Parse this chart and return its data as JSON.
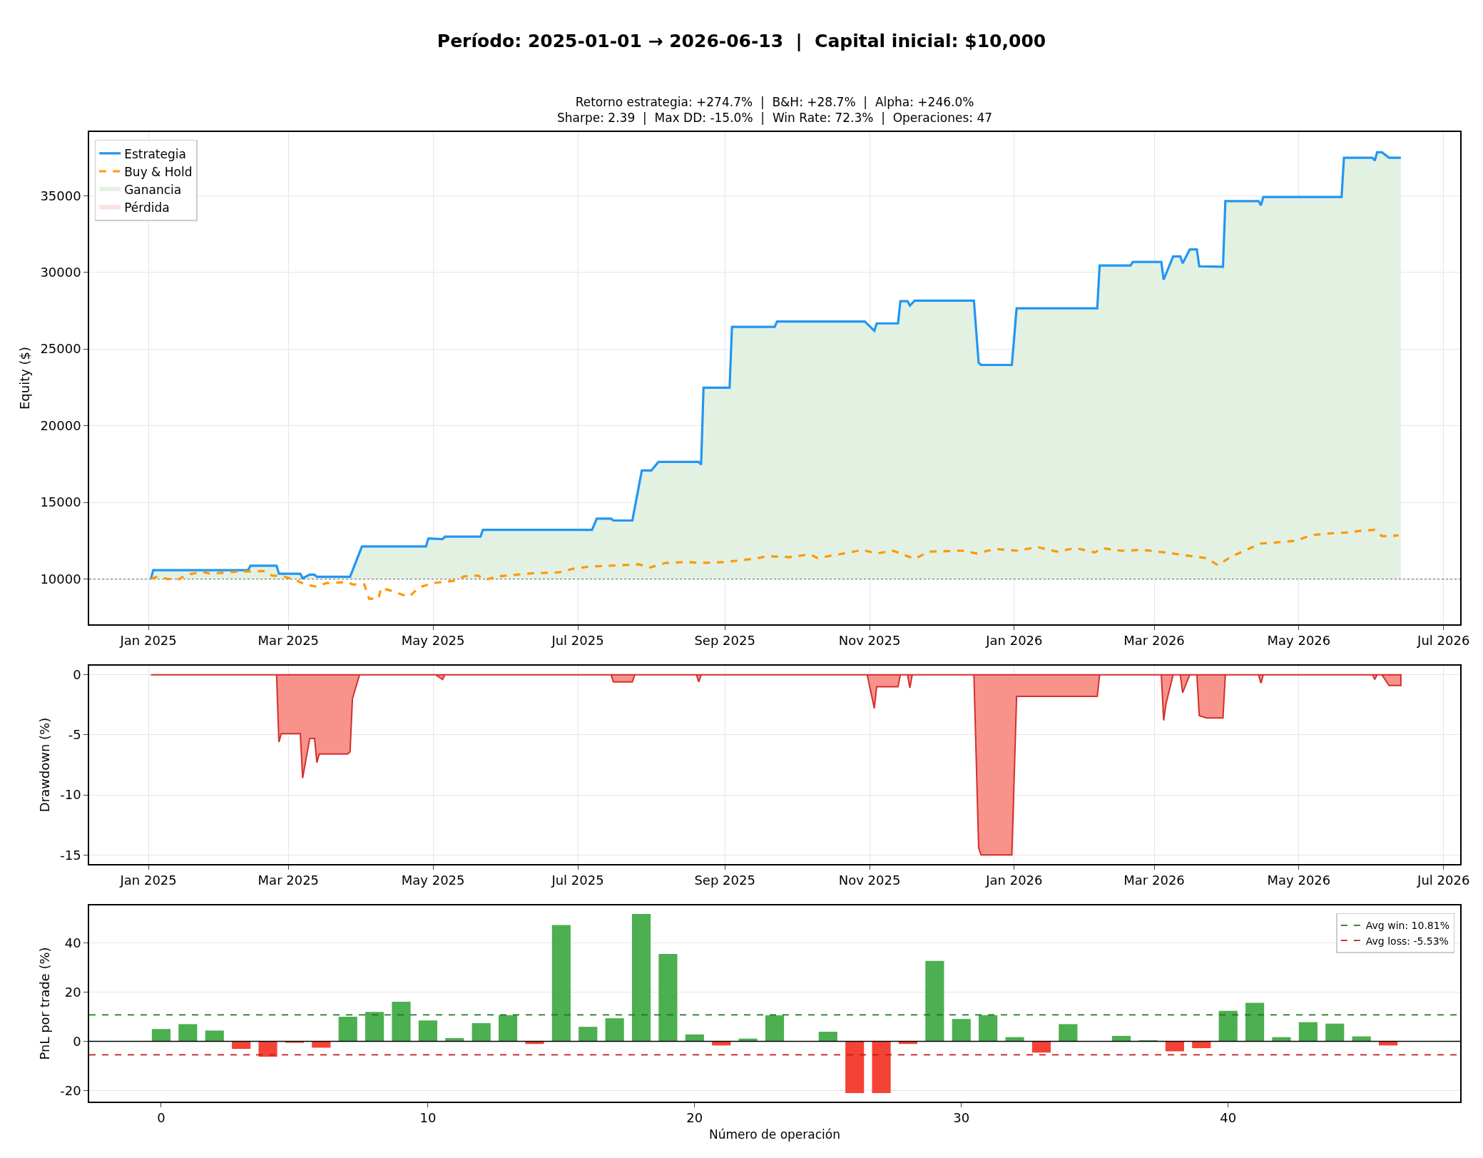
{
  "chart_data": [
    {
      "type": "line",
      "title": "Período: 2025-01-01 → 2026-06-13  |  Capital inicial: $10,000",
      "subtitle": "Retorno estrategia: +274.7%  |  B&H: +28.7%  |  Alpha: +246.0%\nSharpe: 2.39  |  Max DD: -15.0%  |  Win Rate: 72.3%  |  Operaciones: 47",
      "ylabel": "Equity ($)",
      "xlim": [
        "2024-12-07",
        "2026-07-08"
      ],
      "xticks": [
        {
          "value": "2025-01-01",
          "label": "Jan 2025"
        },
        {
          "value": "2025-03-01",
          "label": "Mar 2025"
        },
        {
          "value": "2025-05-01",
          "label": "May 2025"
        },
        {
          "value": "2025-07-01",
          "label": "Jul 2025"
        },
        {
          "value": "2025-09-01",
          "label": "Sep 2025"
        },
        {
          "value": "2025-11-01",
          "label": "Nov 2025"
        },
        {
          "value": "2026-01-01",
          "label": "Jan 2026"
        },
        {
          "value": "2026-03-01",
          "label": "Mar 2026"
        },
        {
          "value": "2026-05-01",
          "label": "May 2026"
        },
        {
          "value": "2026-07-01",
          "label": "Jul 2026"
        }
      ],
      "ylim": [
        7050,
        39150
      ],
      "yticks": [
        10000,
        15000,
        20000,
        25000,
        30000,
        35000
      ],
      "grid": true,
      "legend": "top left",
      "ref_lines": [
        {
          "axis": "y",
          "value": 10000,
          "color": "#808080",
          "line_style": "dotted"
        }
      ],
      "series": [
        {
          "name": "Estrategia",
          "type": "line",
          "color": "#2196f3",
          "line_style": "solid",
          "x": [
            "2025-01-02",
            "2025-01-03",
            "2025-02-12",
            "2025-02-13",
            "2025-02-24",
            "2025-02-25",
            "2025-03-06",
            "2025-03-07",
            "2025-03-10",
            "2025-03-12",
            "2025-03-13",
            "2025-03-27",
            "2025-04-01",
            "2025-04-28",
            "2025-04-29",
            "2025-05-05",
            "2025-05-06",
            "2025-05-21",
            "2025-05-22",
            "2025-07-07",
            "2025-07-09",
            "2025-07-15",
            "2025-07-16",
            "2025-07-24",
            "2025-07-28",
            "2025-08-01",
            "2025-08-04",
            "2025-08-21",
            "2025-08-22",
            "2025-08-23",
            "2025-09-03",
            "2025-09-04",
            "2025-09-22",
            "2025-09-23",
            "2025-10-30",
            "2025-11-03",
            "2025-11-04",
            "2025-11-13",
            "2025-11-14",
            "2025-11-17",
            "2025-11-18",
            "2025-11-20",
            "2025-12-15",
            "2025-12-17",
            "2025-12-18",
            "2025-12-31",
            "2026-01-02",
            "2026-02-05",
            "2026-02-06",
            "2026-02-19",
            "2026-02-20",
            "2026-03-04",
            "2026-03-05",
            "2026-03-09",
            "2026-03-12",
            "2026-03-13",
            "2026-03-16",
            "2026-03-19",
            "2026-03-20",
            "2026-03-30",
            "2026-03-31",
            "2026-04-14",
            "2026-04-15",
            "2026-04-16",
            "2026-05-19",
            "2026-05-20",
            "2026-06-01",
            "2026-06-02",
            "2026-06-03",
            "2026-06-05",
            "2026-06-08",
            "2026-06-13"
          ],
          "values": [
            10000,
            10580,
            10580,
            10870,
            10870,
            10350,
            10350,
            10050,
            10290,
            10290,
            10150,
            10150,
            12130,
            12130,
            12650,
            12600,
            12770,
            12770,
            13210,
            13210,
            13940,
            13940,
            13820,
            13820,
            17080,
            17080,
            17640,
            17640,
            17460,
            22480,
            22480,
            26440,
            26440,
            26790,
            26790,
            26190,
            26670,
            26670,
            28120,
            28120,
            27830,
            28150,
            28150,
            24110,
            23960,
            23960,
            27650,
            27650,
            30440,
            30440,
            30680,
            30680,
            29520,
            31040,
            31040,
            30590,
            31490,
            31490,
            30390,
            30360,
            34640,
            34640,
            34370,
            34910,
            34910,
            37470,
            37470,
            37290,
            37830,
            37830,
            37470,
            37470
          ]
        },
        {
          "name": "Buy & Hold",
          "type": "line",
          "color": "#ff9800",
          "line_style": "dashed",
          "x": [
            "2025-01-02",
            "2025-01-05",
            "2025-01-09",
            "2025-01-14",
            "2025-01-17",
            "2025-01-24",
            "2025-01-27",
            "2025-02-06",
            "2025-02-19",
            "2025-02-22",
            "2025-02-27",
            "2025-03-04",
            "2025-03-08",
            "2025-03-13",
            "2025-03-17",
            "2025-03-26",
            "2025-03-28",
            "2025-04-02",
            "2025-04-04",
            "2025-04-08",
            "2025-04-09",
            "2025-04-14",
            "2025-04-18",
            "2025-04-21",
            "2025-04-25",
            "2025-05-01",
            "2025-05-11",
            "2025-05-14",
            "2025-05-20",
            "2025-05-23",
            "2025-05-28",
            "2025-06-12",
            "2025-06-23",
            "2025-06-29",
            "2025-07-06",
            "2025-07-19",
            "2025-07-27",
            "2025-07-31",
            "2025-08-07",
            "2025-08-16",
            "2025-08-22",
            "2025-09-01",
            "2025-09-14",
            "2025-09-19",
            "2025-09-28",
            "2025-10-07",
            "2025-10-10",
            "2025-10-19",
            "2025-10-29",
            "2025-11-04",
            "2025-11-11",
            "2025-11-20",
            "2025-11-26",
            "2025-12-10",
            "2025-12-16",
            "2025-12-24",
            "2026-01-02",
            "2026-01-11",
            "2026-01-19",
            "2026-01-27",
            "2026-02-04",
            "2026-02-07",
            "2026-02-15",
            "2026-02-24",
            "2026-03-06",
            "2026-03-14",
            "2026-03-23",
            "2026-03-28",
            "2026-04-02",
            "2026-04-08",
            "2026-04-15",
            "2026-04-21",
            "2026-04-30",
            "2026-05-06",
            "2026-05-14",
            "2026-05-22",
            "2026-05-27",
            "2026-06-02",
            "2026-06-05",
            "2026-06-09",
            "2026-06-12"
          ],
          "values": [
            10000,
            10170,
            10000,
            10000,
            10290,
            10470,
            10350,
            10470,
            10520,
            10230,
            10170,
            9940,
            9650,
            9500,
            9740,
            9800,
            9650,
            9650,
            8720,
            8720,
            9420,
            9210,
            8980,
            8860,
            9450,
            9740,
            9910,
            10170,
            10230,
            9940,
            10170,
            10380,
            10440,
            10670,
            10820,
            10900,
            10960,
            10730,
            11050,
            11110,
            11050,
            11110,
            11340,
            11490,
            11430,
            11610,
            11370,
            11610,
            11900,
            11670,
            11850,
            11310,
            11790,
            11850,
            11670,
            11960,
            11850,
            12080,
            11790,
            12020,
            11730,
            12020,
            11850,
            11900,
            11730,
            11550,
            11370,
            10890,
            11430,
            11850,
            12320,
            12380,
            12500,
            12860,
            12980,
            13040,
            13150,
            13210,
            12800,
            12800,
            12860
          ]
        },
        {
          "name": "Ganancia",
          "type": "area",
          "color": "#e3f1e3"
        },
        {
          "name": "Pérdida",
          "type": "area",
          "color": "#fde0de"
        }
      ]
    },
    {
      "type": "area",
      "ylabel": "Drawdown (%)",
      "xlim": [
        "2024-12-07",
        "2026-07-08"
      ],
      "xticks": [
        {
          "value": "2025-01-01",
          "label": "Jan 2025"
        },
        {
          "value": "2025-03-01",
          "label": "Mar 2025"
        },
        {
          "value": "2025-05-01",
          "label": "May 2025"
        },
        {
          "value": "2025-07-01",
          "label": "Jul 2025"
        },
        {
          "value": "2025-09-01",
          "label": "Sep 2025"
        },
        {
          "value": "2025-11-01",
          "label": "Nov 2025"
        },
        {
          "value": "2026-01-01",
          "label": "Jan 2026"
        },
        {
          "value": "2026-03-01",
          "label": "Mar 2026"
        },
        {
          "value": "2026-05-01",
          "label": "May 2026"
        },
        {
          "value": "2026-07-01",
          "label": "Jul 2026"
        }
      ],
      "ylim": [
        -15.75,
        0.75
      ],
      "yticks": [
        -15,
        -10,
        -5,
        0
      ],
      "grid": true,
      "series": [
        {
          "color": "#f7938b",
          "x": [
            "2025-01-02",
            "2025-02-24",
            "2025-02-25",
            "2025-02-26",
            "2025-03-06",
            "2025-03-07",
            "2025-03-10",
            "2025-03-12",
            "2025-03-13",
            "2025-03-14",
            "2025-03-26",
            "2025-03-27",
            "2025-03-28",
            "2025-03-31",
            "2025-05-02",
            "2025-05-05",
            "2025-05-06",
            "2025-07-15",
            "2025-07-16",
            "2025-07-24",
            "2025-07-25",
            "2025-08-20",
            "2025-08-21",
            "2025-08-22",
            "2025-10-31",
            "2025-11-03",
            "2025-11-04",
            "2025-11-13",
            "2025-11-14",
            "2025-11-17",
            "2025-11-18",
            "2025-11-19",
            "2025-12-15",
            "2025-12-17",
            "2025-12-18",
            "2025-12-31",
            "2026-01-02",
            "2026-02-05",
            "2026-02-06",
            "2026-03-04",
            "2026-03-05",
            "2026-03-06",
            "2026-03-09",
            "2026-03-12",
            "2026-03-13",
            "2026-03-16",
            "2026-03-19",
            "2026-03-20",
            "2026-03-23",
            "2026-03-30",
            "2026-03-31",
            "2026-04-14",
            "2026-04-15",
            "2026-04-16",
            "2026-06-01",
            "2026-06-02",
            "2026-06-03",
            "2026-06-05",
            "2026-06-08",
            "2026-06-13"
          ],
          "values": [
            0,
            0,
            -5.6,
            -4.9,
            -4.9,
            -8.6,
            -5.3,
            -5.3,
            -7.3,
            -6.6,
            -6.6,
            -6.4,
            -2.0,
            0,
            0,
            -0.4,
            0,
            0,
            -0.6,
            -0.6,
            0,
            0,
            -0.6,
            0,
            0,
            -2.8,
            -1.0,
            -1.0,
            0,
            0,
            -1.1,
            0,
            0,
            -14.4,
            -15.0,
            -15.0,
            -1.8,
            -1.8,
            0,
            0,
            -3.8,
            -2.4,
            0,
            0,
            -1.5,
            0,
            0,
            -3.4,
            -3.6,
            -3.6,
            0,
            0,
            -0.7,
            0,
            0,
            -0.4,
            0,
            0,
            -0.9,
            -0.9
          ]
        }
      ]
    },
    {
      "type": "bar",
      "xlabel": "Número de operación",
      "ylabel": "PnL por trade (%)",
      "x": [
        0,
        1,
        2,
        3,
        4,
        5,
        6,
        7,
        8,
        9,
        10,
        11,
        12,
        13,
        14,
        15,
        16,
        17,
        18,
        19,
        20,
        21,
        22,
        23,
        24,
        25,
        26,
        27,
        28,
        29,
        30,
        31,
        32,
        33,
        34,
        35,
        36,
        37,
        38,
        39,
        40,
        41,
        42,
        43,
        44,
        45,
        46
      ],
      "values": [
        5.0,
        7.0,
        4.4,
        -3.1,
        -6.3,
        -0.6,
        -2.6,
        10.0,
        12.0,
        16.1,
        8.5,
        1.3,
        7.4,
        10.7,
        -1.1,
        47.4,
        5.9,
        9.4,
        51.9,
        35.6,
        2.8,
        -1.7,
        1.1,
        10.6,
        null,
        3.9,
        -21.1,
        -21.1,
        -1.1,
        32.8,
        9.1,
        10.7,
        1.7,
        -4.6,
        7.0,
        0,
        2.2,
        0.4,
        -4.1,
        -2.8,
        12.4,
        15.7,
        1.7,
        7.8,
        7.2,
        2.0,
        -1.7
      ],
      "colors": [
        "#4caf50",
        "#4caf50",
        "#4caf50",
        "#f44336",
        "#f44336",
        "#f44336",
        "#f44336",
        "#4caf50",
        "#4caf50",
        "#4caf50",
        "#4caf50",
        "#4caf50",
        "#4caf50",
        "#4caf50",
        "#f44336",
        "#4caf50",
        "#4caf50",
        "#4caf50",
        "#4caf50",
        "#4caf50",
        "#4caf50",
        "#f44336",
        "#4caf50",
        "#4caf50",
        "#4caf50",
        "#4caf50",
        "#f44336",
        "#f44336",
        "#f44336",
        "#4caf50",
        "#4caf50",
        "#4caf50",
        "#4caf50",
        "#f44336",
        "#4caf50",
        "#4caf50",
        "#4caf50",
        "#4caf50",
        "#f44336",
        "#f44336",
        "#4caf50",
        "#4caf50",
        "#4caf50",
        "#4caf50",
        "#4caf50",
        "#4caf50",
        "#f44336"
      ],
      "xlim": [
        -2.7,
        48.7
      ],
      "xticks": [
        0,
        10,
        20,
        30,
        40
      ],
      "ylim": [
        -24.6,
        55.4
      ],
      "yticks": [
        -20,
        0,
        20,
        40
      ],
      "grid": "y",
      "legend": "top right",
      "ref_lines": [
        {
          "axis": "y",
          "value": 0,
          "color": "#000000",
          "line_style": "solid"
        },
        {
          "axis": "y",
          "value": 10.81,
          "label": "Avg win: 10.81%",
          "color": "#1b7a1b",
          "line_style": "dashed"
        },
        {
          "axis": "y",
          "value": -5.53,
          "label": "Avg loss: -5.53%",
          "color": "#c41a1a",
          "line_style": "dashed"
        }
      ]
    }
  ]
}
